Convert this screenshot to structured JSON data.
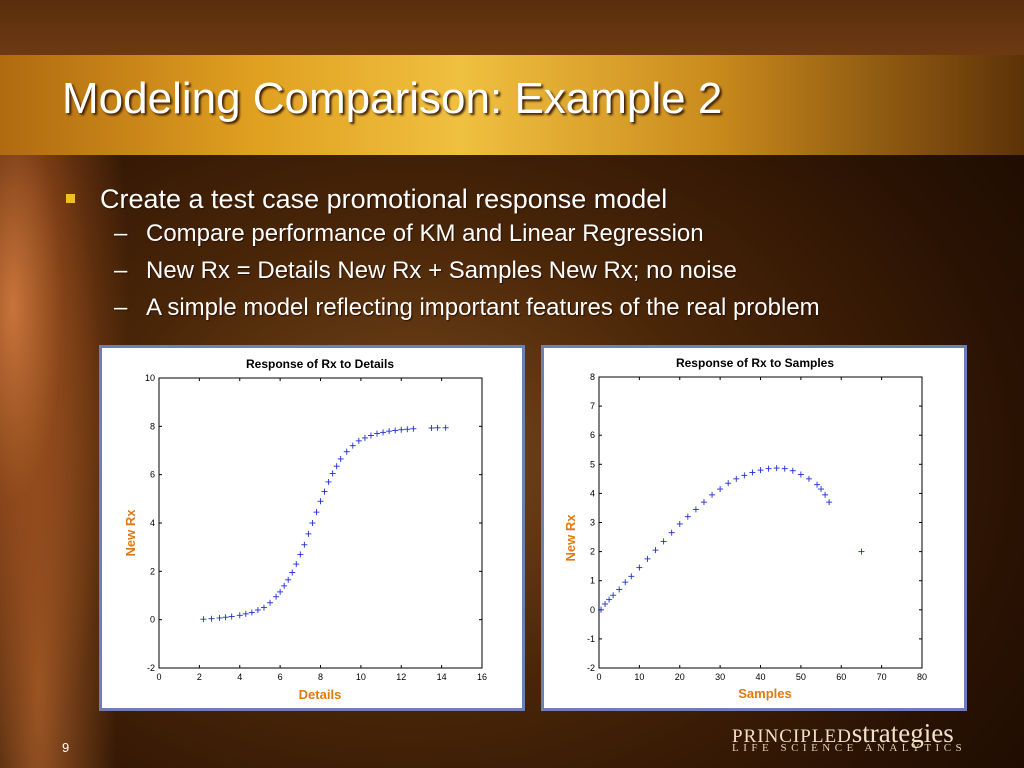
{
  "slide": {
    "title": "Modeling Comparison: Example 2",
    "bullets": [
      {
        "text": "Create a test case promotional response model",
        "sub": [
          "Compare performance of KM and Linear Regression",
          "New Rx = Details New Rx + Samples New Rx; no noise",
          "A simple model reflecting important features of the real problem"
        ]
      }
    ],
    "page_number": "9",
    "logo": {
      "part1": "PRINCIPLED",
      "part2": "strategies",
      "tagline": "LIFE SCIENCE ANALYTICS"
    }
  },
  "colors": {
    "series": "#1f2fd6",
    "axis_label": "#e07a10",
    "panel_border": "#6d7fb6",
    "bullet_marker": "#f0c020"
  },
  "chart_data": [
    {
      "type": "scatter",
      "title": "Response of Rx to Details",
      "xlabel": "Details",
      "ylabel": "New Rx",
      "xlim": [
        0,
        16
      ],
      "ylim": [
        -2,
        10
      ],
      "xticks": [
        0,
        2,
        4,
        6,
        8,
        10,
        12,
        14,
        16
      ],
      "yticks": [
        -2,
        0,
        2,
        4,
        6,
        8,
        10
      ],
      "marker": "+",
      "series": [
        {
          "x": [
            2.2,
            2.6,
            3.0,
            3.3,
            3.6,
            4.0,
            4.3,
            4.6,
            4.9,
            5.2,
            5.5,
            5.8,
            6.0,
            6.2,
            6.4,
            6.6,
            6.8,
            7.0,
            7.2,
            7.4,
            7.6,
            7.8,
            8.0,
            8.2,
            8.4,
            8.6,
            8.8,
            9.0,
            9.3,
            9.6,
            9.9,
            10.2,
            10.5,
            10.8,
            11.1,
            11.4,
            11.7,
            12.0,
            12.3,
            12.6,
            13.5,
            13.8,
            14.2
          ],
          "y": [
            0.02,
            0.04,
            0.07,
            0.1,
            0.13,
            0.18,
            0.24,
            0.3,
            0.4,
            0.5,
            0.7,
            0.95,
            1.15,
            1.4,
            1.65,
            1.95,
            2.3,
            2.7,
            3.1,
            3.55,
            4.0,
            4.45,
            4.9,
            5.3,
            5.7,
            6.05,
            6.35,
            6.65,
            6.95,
            7.2,
            7.4,
            7.52,
            7.62,
            7.7,
            7.75,
            7.8,
            7.83,
            7.86,
            7.88,
            7.9,
            7.93,
            7.94,
            7.94
          ]
        }
      ]
    },
    {
      "type": "scatter",
      "title": "Response of Rx to Samples",
      "xlabel": "Samples",
      "ylabel": "New Rx",
      "xlim": [
        0,
        80
      ],
      "ylim": [
        -2,
        8
      ],
      "xticks": [
        0,
        10,
        20,
        30,
        40,
        50,
        60,
        70,
        80
      ],
      "yticks": [
        -2,
        -1,
        0,
        1,
        2,
        3,
        4,
        5,
        6,
        7,
        8
      ],
      "marker": "+",
      "series": [
        {
          "x": [
            0.5,
            1.5,
            2.5,
            3.5,
            5,
            6.5,
            8,
            10,
            12,
            14,
            16,
            18,
            20,
            22,
            24,
            26,
            28,
            30,
            32,
            34,
            36,
            38,
            40,
            42,
            44,
            46,
            48,
            50,
            52,
            54,
            55,
            56,
            57,
            65
          ],
          "y": [
            0,
            0.2,
            0.35,
            0.5,
            0.7,
            0.95,
            1.15,
            1.45,
            1.75,
            2.05,
            2.35,
            2.65,
            2.95,
            3.2,
            3.45,
            3.7,
            3.95,
            4.15,
            4.35,
            4.5,
            4.62,
            4.72,
            4.8,
            4.85,
            4.87,
            4.85,
            4.78,
            4.65,
            4.5,
            4.3,
            4.15,
            3.95,
            3.7,
            2.0
          ]
        }
      ]
    }
  ]
}
